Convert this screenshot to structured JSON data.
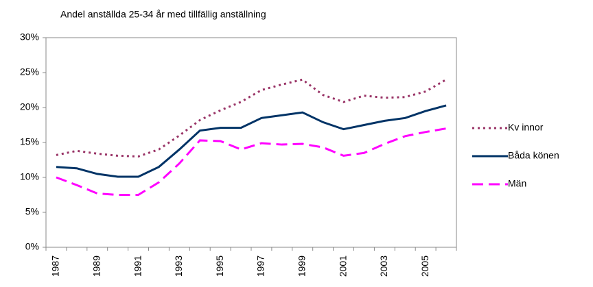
{
  "chart_data": {
    "type": "line",
    "title": "Andel anställda 25-34 år med tillfällig anställning",
    "categories": [
      "1987",
      null,
      "1989",
      null,
      "1991",
      null,
      "1993",
      null,
      "1995",
      null,
      "1997",
      null,
      "1999",
      null,
      "2001",
      null,
      "2003",
      null,
      "2005",
      null
    ],
    "series": [
      {
        "name": "Kv innor",
        "color": "#993366",
        "dash": "dot",
        "values": [
          13.2,
          13.8,
          13.4,
          13.1,
          13.0,
          14.0,
          16.0,
          18.2,
          19.6,
          20.8,
          22.5,
          23.3,
          24.0,
          21.8,
          20.8,
          21.7,
          21.4,
          21.5,
          22.3,
          24.0
        ]
      },
      {
        "name": "Båda könen",
        "color": "#003366",
        "dash": "solid",
        "values": [
          11.5,
          11.3,
          10.5,
          10.1,
          10.1,
          11.5,
          14.0,
          16.7,
          17.1,
          17.1,
          18.5,
          18.9,
          19.3,
          17.9,
          16.9,
          17.5,
          18.1,
          18.5,
          19.5,
          20.3
        ]
      },
      {
        "name": "Män",
        "color": "#ff00ff",
        "dash": "dash",
        "values": [
          10.0,
          8.9,
          7.7,
          7.5,
          7.5,
          9.3,
          12.0,
          15.3,
          15.2,
          14.0,
          14.9,
          14.7,
          14.8,
          14.3,
          13.1,
          13.5,
          14.8,
          15.9,
          16.5,
          17.0
        ]
      }
    ],
    "ylim": [
      0,
      30
    ],
    "yticks": [
      {
        "value": 0,
        "label": "0%"
      },
      {
        "value": 5,
        "label": "5%"
      },
      {
        "value": 10,
        "label": "10%"
      },
      {
        "value": 15,
        "label": "15%"
      },
      {
        "value": 20,
        "label": "20%"
      },
      {
        "value": 25,
        "label": "25%"
      },
      {
        "value": 30,
        "label": "30%"
      }
    ],
    "grid": false,
    "legend": "right"
  }
}
